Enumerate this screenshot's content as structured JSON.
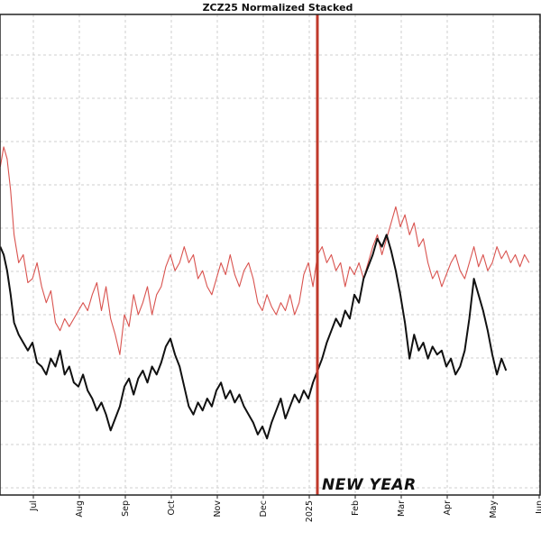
{
  "chart_data": {
    "type": "line",
    "title": "ZCZ25 Normalized Stacked",
    "xlabel": "",
    "ylabel": "",
    "x_ticks": [
      "Jul",
      "Aug",
      "Sep",
      "Oct",
      "Nov",
      "Dec",
      "2025",
      "Feb",
      "Mar",
      "Apr",
      "May",
      "Jun"
    ],
    "y_range": [
      0,
      100
    ],
    "grid": true,
    "legend": "none",
    "annotations": [
      {
        "text": "NEW YEAR",
        "x": "2025"
      }
    ],
    "series": [
      {
        "color": "#d9534f",
        "points": [
          [
            0.0,
            72
          ],
          [
            0.15,
            77
          ],
          [
            0.3,
            74
          ],
          [
            0.45,
            66
          ],
          [
            0.6,
            55
          ],
          [
            0.8,
            48
          ],
          [
            1.0,
            50
          ],
          [
            1.2,
            43
          ],
          [
            1.4,
            44
          ],
          [
            1.6,
            48
          ],
          [
            1.8,
            42
          ],
          [
            2.0,
            38
          ],
          [
            2.2,
            41
          ],
          [
            2.4,
            33
          ],
          [
            2.6,
            31
          ],
          [
            2.8,
            34
          ],
          [
            3.0,
            32
          ],
          [
            3.2,
            34
          ],
          [
            3.4,
            36
          ],
          [
            3.6,
            38
          ],
          [
            3.8,
            36
          ],
          [
            4.0,
            40
          ],
          [
            4.2,
            43
          ],
          [
            4.4,
            36
          ],
          [
            4.6,
            42
          ],
          [
            4.8,
            34
          ],
          [
            5.0,
            30
          ],
          [
            5.2,
            25
          ],
          [
            5.4,
            35
          ],
          [
            5.6,
            32
          ],
          [
            5.8,
            40
          ],
          [
            6.0,
            35
          ],
          [
            6.2,
            38
          ],
          [
            6.4,
            42
          ],
          [
            6.6,
            35
          ],
          [
            6.8,
            40
          ],
          [
            7.0,
            42
          ],
          [
            7.2,
            47
          ],
          [
            7.4,
            50
          ],
          [
            7.6,
            46
          ],
          [
            7.8,
            48
          ],
          [
            8.0,
            52
          ],
          [
            8.2,
            48
          ],
          [
            8.4,
            50
          ],
          [
            8.6,
            44
          ],
          [
            8.8,
            46
          ],
          [
            9.0,
            42
          ],
          [
            9.2,
            40
          ],
          [
            9.4,
            44
          ],
          [
            9.6,
            48
          ],
          [
            9.8,
            45
          ],
          [
            10.0,
            50
          ],
          [
            10.2,
            45
          ],
          [
            10.4,
            42
          ],
          [
            10.6,
            46
          ],
          [
            10.8,
            48
          ],
          [
            11.0,
            44
          ],
          [
            11.2,
            38
          ],
          [
            11.4,
            36
          ],
          [
            11.6,
            40
          ],
          [
            11.8,
            37
          ],
          [
            12.0,
            35
          ],
          [
            12.2,
            38
          ],
          [
            12.4,
            36
          ],
          [
            12.6,
            40
          ],
          [
            12.8,
            35
          ],
          [
            13.0,
            38
          ],
          [
            13.2,
            45
          ],
          [
            13.4,
            48
          ],
          [
            13.6,
            42
          ],
          [
            13.8,
            50
          ],
          [
            14.0,
            52
          ],
          [
            14.2,
            48
          ],
          [
            14.4,
            50
          ],
          [
            14.6,
            46
          ],
          [
            14.8,
            48
          ],
          [
            15.0,
            42
          ],
          [
            15.2,
            47
          ],
          [
            15.4,
            45
          ],
          [
            15.6,
            48
          ],
          [
            15.8,
            44
          ],
          [
            16.0,
            48
          ],
          [
            16.2,
            52
          ],
          [
            16.4,
            55
          ],
          [
            16.6,
            50
          ],
          [
            16.8,
            54
          ],
          [
            17.0,
            58
          ],
          [
            17.2,
            62
          ],
          [
            17.4,
            57
          ],
          [
            17.6,
            60
          ],
          [
            17.8,
            55
          ],
          [
            18.0,
            58
          ],
          [
            18.2,
            52
          ],
          [
            18.4,
            54
          ],
          [
            18.6,
            48
          ],
          [
            18.8,
            44
          ],
          [
            19.0,
            46
          ],
          [
            19.2,
            42
          ],
          [
            19.4,
            45
          ],
          [
            19.6,
            48
          ],
          [
            19.8,
            50
          ],
          [
            20.0,
            46
          ],
          [
            20.2,
            44
          ],
          [
            20.4,
            48
          ],
          [
            20.6,
            52
          ],
          [
            20.8,
            47
          ],
          [
            21.0,
            50
          ],
          [
            21.2,
            46
          ],
          [
            21.4,
            48
          ],
          [
            21.6,
            52
          ],
          [
            21.8,
            49
          ],
          [
            22.0,
            51
          ],
          [
            22.2,
            48
          ],
          [
            22.4,
            50
          ],
          [
            22.6,
            47
          ],
          [
            22.8,
            50
          ],
          [
            23.0,
            48
          ]
        ]
      },
      {
        "color": "#111111",
        "points": [
          [
            0.0,
            52
          ],
          [
            0.15,
            50
          ],
          [
            0.3,
            46
          ],
          [
            0.45,
            40
          ],
          [
            0.6,
            33
          ],
          [
            0.8,
            30
          ],
          [
            1.0,
            28
          ],
          [
            1.2,
            26
          ],
          [
            1.4,
            28
          ],
          [
            1.6,
            23
          ],
          [
            1.8,
            22
          ],
          [
            2.0,
            20
          ],
          [
            2.2,
            24
          ],
          [
            2.4,
            22
          ],
          [
            2.6,
            26
          ],
          [
            2.8,
            20
          ],
          [
            3.0,
            22
          ],
          [
            3.2,
            18
          ],
          [
            3.4,
            17
          ],
          [
            3.6,
            20
          ],
          [
            3.8,
            16
          ],
          [
            4.0,
            14
          ],
          [
            4.2,
            11
          ],
          [
            4.4,
            13
          ],
          [
            4.6,
            10
          ],
          [
            4.8,
            6
          ],
          [
            5.0,
            9
          ],
          [
            5.2,
            12
          ],
          [
            5.4,
            17
          ],
          [
            5.6,
            19
          ],
          [
            5.8,
            15
          ],
          [
            6.0,
            19
          ],
          [
            6.2,
            21
          ],
          [
            6.4,
            18
          ],
          [
            6.6,
            22
          ],
          [
            6.8,
            20
          ],
          [
            7.0,
            23
          ],
          [
            7.2,
            27
          ],
          [
            7.4,
            29
          ],
          [
            7.6,
            25
          ],
          [
            7.8,
            22
          ],
          [
            8.0,
            17
          ],
          [
            8.2,
            12
          ],
          [
            8.4,
            10
          ],
          [
            8.6,
            13
          ],
          [
            8.8,
            11
          ],
          [
            9.0,
            14
          ],
          [
            9.2,
            12
          ],
          [
            9.4,
            16
          ],
          [
            9.6,
            18
          ],
          [
            9.8,
            14
          ],
          [
            10.0,
            16
          ],
          [
            10.2,
            13
          ],
          [
            10.4,
            15
          ],
          [
            10.6,
            12
          ],
          [
            10.8,
            10
          ],
          [
            11.0,
            8
          ],
          [
            11.2,
            5
          ],
          [
            11.4,
            7
          ],
          [
            11.6,
            4
          ],
          [
            11.8,
            8
          ],
          [
            12.0,
            11
          ],
          [
            12.2,
            14
          ],
          [
            12.4,
            9
          ],
          [
            12.6,
            12
          ],
          [
            12.8,
            15
          ],
          [
            13.0,
            13
          ],
          [
            13.2,
            16
          ],
          [
            13.4,
            14
          ],
          [
            13.6,
            18
          ],
          [
            13.8,
            21
          ],
          [
            14.0,
            24
          ],
          [
            14.2,
            28
          ],
          [
            14.4,
            31
          ],
          [
            14.6,
            34
          ],
          [
            14.8,
            32
          ],
          [
            15.0,
            36
          ],
          [
            15.2,
            34
          ],
          [
            15.4,
            40
          ],
          [
            15.6,
            38
          ],
          [
            15.8,
            44
          ],
          [
            16.0,
            47
          ],
          [
            16.2,
            50
          ],
          [
            16.4,
            54
          ],
          [
            16.6,
            52
          ],
          [
            16.8,
            55
          ],
          [
            17.0,
            51
          ],
          [
            17.2,
            46
          ],
          [
            17.4,
            40
          ],
          [
            17.6,
            33
          ],
          [
            17.8,
            24
          ],
          [
            18.0,
            30
          ],
          [
            18.2,
            26
          ],
          [
            18.4,
            28
          ],
          [
            18.6,
            24
          ],
          [
            18.8,
            27
          ],
          [
            19.0,
            25
          ],
          [
            19.2,
            26
          ],
          [
            19.4,
            22
          ],
          [
            19.6,
            24
          ],
          [
            19.8,
            20
          ],
          [
            20.0,
            22
          ],
          [
            20.2,
            26
          ],
          [
            20.4,
            34
          ],
          [
            20.6,
            44
          ],
          [
            20.8,
            40
          ],
          [
            21.0,
            36
          ],
          [
            21.2,
            31
          ],
          [
            21.4,
            25
          ],
          [
            21.6,
            20
          ],
          [
            21.8,
            24
          ],
          [
            22.0,
            21
          ]
        ]
      }
    ]
  }
}
